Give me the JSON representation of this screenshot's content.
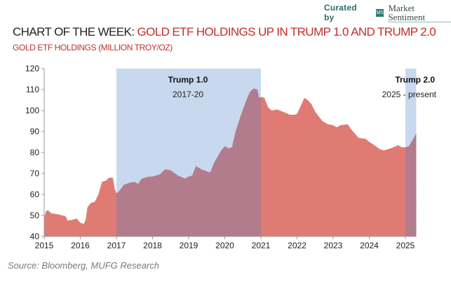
{
  "header": {
    "curated_by": "Curated by",
    "logo_text": "MS",
    "brand": "Market Sentiment",
    "title_lead": "CHART OF THE WEEK:",
    "title_rest": "GOLD ETF HOLDINGS UP IN TRUMP 1.0 AND TRUMP 2.0",
    "subtitle": "GOLD ETF HOLDINGS (MILLION TROY/OZ)"
  },
  "source": "Source: Bloomberg, MUFG Research",
  "chart_data": {
    "type": "area",
    "title": "GOLD ETF HOLDINGS (MILLION TROY/OZ)",
    "xlabel": "",
    "ylabel": "",
    "xlim": [
      2015,
      2025.3
    ],
    "ylim": [
      40,
      120
    ],
    "yticks": [
      40,
      50,
      60,
      70,
      80,
      90,
      100,
      110,
      120
    ],
    "xticks": [
      2015,
      2016,
      2017,
      2018,
      2019,
      2020,
      2021,
      2022,
      2023,
      2024,
      2025
    ],
    "grid": false,
    "colors": {
      "area": "#e07b73",
      "overlap": "#b27c8c",
      "shade": "#c8d8ee"
    },
    "shaded_periods": [
      {
        "label": "Trump 1.0",
        "sublabel": "2017-20",
        "start": 2017,
        "end": 2021
      },
      {
        "label": "Trump 2.0",
        "sublabel": "2025 - present",
        "start": 2025,
        "end": 2025.3
      }
    ],
    "x": [
      2015.0,
      2015.05,
      2015.1,
      2015.2,
      2015.4,
      2015.5,
      2015.6,
      2015.65,
      2015.8,
      2015.9,
      2016.0,
      2016.1,
      2016.15,
      2016.2,
      2016.3,
      2016.4,
      2016.5,
      2016.6,
      2016.7,
      2016.8,
      2016.9,
      2016.95,
      2017.0,
      2017.1,
      2017.2,
      2017.35,
      2017.5,
      2017.6,
      2017.7,
      2017.9,
      2018.0,
      2018.2,
      2018.35,
      2018.5,
      2018.7,
      2018.9,
      2019.0,
      2019.1,
      2019.2,
      2019.35,
      2019.5,
      2019.6,
      2019.7,
      2019.9,
      2020.0,
      2020.1,
      2020.2,
      2020.3,
      2020.45,
      2020.6,
      2020.7,
      2020.8,
      2020.9,
      2020.95,
      2021.0,
      2021.1,
      2021.2,
      2021.3,
      2021.45,
      2021.6,
      2021.8,
      2021.95,
      2022.0,
      2022.1,
      2022.2,
      2022.3,
      2022.4,
      2022.5,
      2022.7,
      2022.85,
      2023.0,
      2023.1,
      2023.2,
      2023.4,
      2023.5,
      2023.7,
      2023.9,
      2024.0,
      2024.1,
      2024.3,
      2024.4,
      2024.6,
      2024.8,
      2024.9,
      2025.0,
      2025.1,
      2025.2,
      2025.3
    ],
    "y": [
      49,
      52,
      52.5,
      51,
      50.5,
      50,
      49.5,
      47.5,
      48,
      48.5,
      46.5,
      46,
      48,
      54,
      56,
      56.5,
      60,
      66,
      66.5,
      68,
      68,
      63,
      60.5,
      62,
      64.5,
      65.5,
      66,
      65,
      67.5,
      68.5,
      68.5,
      69.5,
      72,
      71.5,
      69,
      67.5,
      68.5,
      69,
      73.5,
      72,
      71,
      70.5,
      75,
      81,
      83,
      82,
      82.5,
      90,
      98,
      105,
      109,
      110.5,
      110,
      106,
      106.5,
      106,
      101.5,
      100,
      100.5,
      99.5,
      98,
      98,
      98.5,
      102,
      106,
      105,
      103,
      99.5,
      95,
      93.5,
      93,
      92,
      93,
      93.5,
      91,
      87,
      86.5,
      85,
      84,
      81.5,
      81,
      82,
      83.5,
      82.5,
      82.5,
      83,
      86,
      89
    ]
  }
}
